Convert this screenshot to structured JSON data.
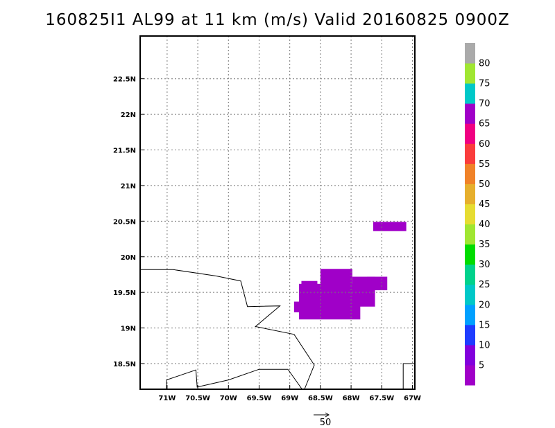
{
  "title": "160825I1 AL99 at 11 km (m/s) Valid 20160825 0900Z",
  "map": {
    "lon_min": -71.44,
    "lon_max": -66.96,
    "lat_min": 18.14,
    "lat_max": 23.1,
    "gridlines": true,
    "x_ticks": [
      {
        "value": -71.0,
        "label": "71W"
      },
      {
        "value": -70.5,
        "label": "70.5W"
      },
      {
        "value": -70.0,
        "label": "70W"
      },
      {
        "value": -69.5,
        "label": "69.5W"
      },
      {
        "value": -69.0,
        "label": "69W"
      },
      {
        "value": -68.5,
        "label": "68.5W"
      },
      {
        "value": -68.0,
        "label": "68W"
      },
      {
        "value": -67.5,
        "label": "67.5W"
      },
      {
        "value": -67.0,
        "label": "67W"
      }
    ],
    "y_ticks": [
      {
        "value": 18.5,
        "label": "18.5N"
      },
      {
        "value": 19.0,
        "label": "19N"
      },
      {
        "value": 19.5,
        "label": "19.5N"
      },
      {
        "value": 20.0,
        "label": "20N"
      },
      {
        "value": 20.5,
        "label": "20.5N"
      },
      {
        "value": 21.0,
        "label": "21N"
      },
      {
        "value": 21.5,
        "label": "21.5N"
      },
      {
        "value": 22.0,
        "label": "22N"
      },
      {
        "value": 22.5,
        "label": "22.5N"
      }
    ],
    "coastlines": [
      [
        [
          -71.44,
          19.82
        ],
        [
          -70.9,
          19.82
        ],
        [
          -70.2,
          19.73
        ],
        [
          -69.8,
          19.66
        ],
        [
          -69.69,
          19.3
        ],
        [
          -69.16,
          19.31
        ],
        [
          -69.56,
          19.02
        ],
        [
          -68.93,
          18.91
        ],
        [
          -68.6,
          18.48
        ],
        [
          -68.76,
          18.14
        ]
      ],
      [
        [
          -71.01,
          18.14
        ],
        [
          -71.01,
          18.27
        ],
        [
          -70.53,
          18.41
        ],
        [
          -70.51,
          18.17
        ],
        [
          -70.0,
          18.27
        ],
        [
          -69.5,
          18.42
        ],
        [
          -69.03,
          18.42
        ],
        [
          -68.8,
          18.14
        ]
      ],
      [
        [
          -67.15,
          18.14
        ],
        [
          -67.15,
          18.5
        ],
        [
          -66.96,
          18.5
        ]
      ]
    ],
    "wind_regions": [
      {
        "color": "#a000c8",
        "lon": [
          -68.85,
          -67.85
        ],
        "lat": [
          19.12,
          19.62
        ]
      },
      {
        "color": "#a000c8",
        "lon": [
          -68.5,
          -67.98
        ],
        "lat": [
          19.55,
          19.83
        ]
      },
      {
        "color": "#a000c8",
        "lon": [
          -67.98,
          -67.61
        ],
        "lat": [
          19.3,
          19.72
        ]
      },
      {
        "color": "#a000c8",
        "lon": [
          -67.74,
          -67.41
        ],
        "lat": [
          19.53,
          19.72
        ]
      },
      {
        "color": "#a000c8",
        "lon": [
          -68.93,
          -68.82
        ],
        "lat": [
          19.22,
          19.37
        ]
      },
      {
        "color": "#a000c8",
        "lon": [
          -68.81,
          -68.55
        ],
        "lat": [
          19.58,
          19.66
        ]
      },
      {
        "color": "#a000c8",
        "lon": [
          -67.64,
          -67.1
        ],
        "lat": [
          20.36,
          20.49
        ]
      }
    ],
    "reference_vector": {
      "label": "50"
    }
  },
  "colorbar": {
    "levels": [
      {
        "color": "#a000c8",
        "label": "5"
      },
      {
        "color": "#8200dc",
        "label": "10"
      },
      {
        "color": "#1e3cff",
        "label": "15"
      },
      {
        "color": "#00a0ff",
        "label": "20"
      },
      {
        "color": "#00c8c8",
        "label": "25"
      },
      {
        "color": "#00d28c",
        "label": "30"
      },
      {
        "color": "#00dc00",
        "label": "35"
      },
      {
        "color": "#a0e632",
        "label": "40"
      },
      {
        "color": "#e6dc32",
        "label": "45"
      },
      {
        "color": "#e6af2d",
        "label": "50"
      },
      {
        "color": "#f08228",
        "label": "55"
      },
      {
        "color": "#fa3c3c",
        "label": "60"
      },
      {
        "color": "#f00082",
        "label": "65"
      },
      {
        "color": "#a000c8",
        "label": "70"
      },
      {
        "color": "#00c8c8",
        "label": "75"
      },
      {
        "color": "#a0e632",
        "label": "80"
      },
      {
        "color": "#aaaaaa",
        "label": ""
      }
    ]
  }
}
